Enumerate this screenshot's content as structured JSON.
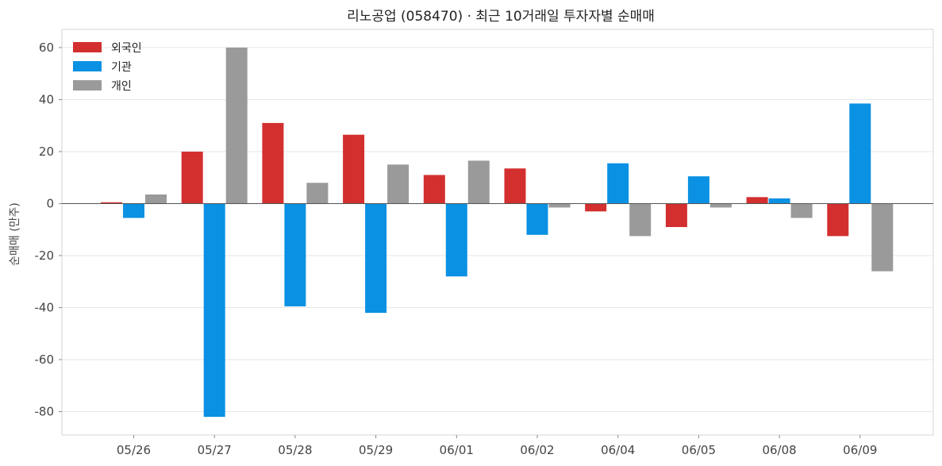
{
  "chart_data": {
    "type": "bar",
    "title": "리노공업 (058470) · 최근 10거래일 투자자별 순매매",
    "xlabel": "",
    "ylabel": "순매매 (만주)",
    "categories": [
      "05/26",
      "05/27",
      "05/28",
      "05/29",
      "06/01",
      "06/02",
      "06/04",
      "06/05",
      "06/08",
      "06/09"
    ],
    "series": [
      {
        "name": "외국인",
        "color": "#d32f2f",
        "values": [
          0.5,
          20,
          31,
          26.5,
          11,
          13.5,
          -3,
          -9,
          2.5,
          -12.5
        ]
      },
      {
        "name": "기관",
        "color": "#0a91e3",
        "values": [
          -5.5,
          -82,
          -39.5,
          -42,
          -28,
          -12,
          15.5,
          10.5,
          2,
          38.5
        ]
      },
      {
        "name": "개인",
        "color": "#9a9a9a",
        "values": [
          3.5,
          60,
          8,
          15,
          16.5,
          -1.5,
          -12.5,
          -1.5,
          -5.5,
          -26
        ]
      }
    ],
    "ylim": [
      -89,
      67
    ],
    "yticks": [
      -80,
      -60,
      -40,
      -20,
      0,
      20,
      40,
      60
    ],
    "grid": true,
    "legend_position": "top-left"
  }
}
